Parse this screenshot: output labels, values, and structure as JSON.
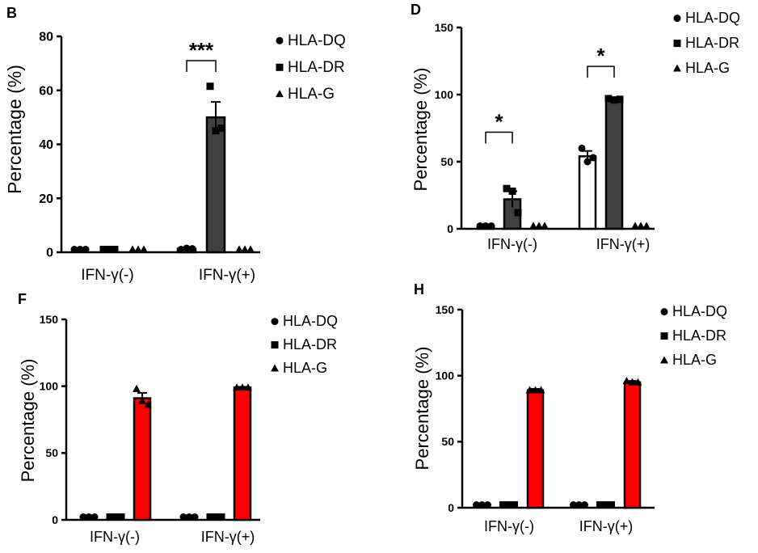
{
  "chart_data": [
    {
      "panel": "B",
      "type": "bar",
      "ylabel": "Percentage (%)",
      "ylim": [
        0,
        80
      ],
      "yticks": [
        "0",
        "20",
        "40",
        "60",
        "80"
      ],
      "categories": [
        "IFN-γ(-)",
        "IFN-γ(+)"
      ],
      "legend": [
        "HLA-DQ",
        "HLA-DR",
        "HLA-G"
      ],
      "series": [
        {
          "name": "HLA-DQ",
          "fill": "#ffffff",
          "marker": "circle",
          "values": [
            0.3,
            1.3
          ],
          "err": [
            0,
            0
          ],
          "points": [
            [
              0.3,
              0.3,
              0.3
            ],
            [
              1.0,
              1.5,
              1.3
            ]
          ]
        },
        {
          "name": "HLA-DR",
          "fill": "#404040",
          "marker": "square",
          "values": [
            0.3,
            50
          ],
          "err": [
            0,
            5.7
          ],
          "points": [
            [
              0.3,
              0.3,
              0.3
            ],
            [
              61.5,
              45,
              46
            ]
          ]
        },
        {
          "name": "HLA-G",
          "fill": "#ffffff",
          "marker": "triangle",
          "values": [
            0.3,
            0.3
          ],
          "err": [
            0,
            0
          ],
          "points": [
            [
              0.3,
              0.3,
              0.3
            ],
            [
              0.3,
              0.3,
              0.3
            ]
          ]
        }
      ],
      "significance": [
        {
          "from": [
            0,
            1
          ],
          "to": [
            1,
            1
          ],
          "label": "***",
          "y": 71
        }
      ]
    },
    {
      "panel": "D",
      "type": "bar",
      "ylabel": "Percentage (%)",
      "ylim": [
        0,
        150
      ],
      "yticks": [
        "0",
        "50",
        "100",
        "150"
      ],
      "categories": [
        "IFN-γ(-)",
        "IFN-γ(+)"
      ],
      "legend": [
        "HLA-DQ",
        "HLA-DR",
        "HLA-G"
      ],
      "series": [
        {
          "name": "HLA-DQ",
          "fill": "#ffffff",
          "marker": "circle",
          "values": [
            1.5,
            54
          ],
          "err": [
            0,
            4
          ],
          "points": [
            [
              1.5,
              1.5,
              1.5
            ],
            [
              60,
              50,
              53
            ]
          ]
        },
        {
          "name": "HLA-DR",
          "fill": "#404040",
          "marker": "square",
          "values": [
            22,
            96.5
          ],
          "err": [
            6,
            1
          ],
          "points": [
            [
              30,
              28,
              12
            ],
            [
              97,
              96,
              96.5
            ]
          ]
        },
        {
          "name": "HLA-G",
          "fill": "#ffffff",
          "marker": "triangle",
          "values": [
            0.3,
            0.3
          ],
          "err": [
            0,
            0
          ],
          "points": [
            [
              0.3,
              0.3,
              0.3
            ],
            [
              0.3,
              0.3,
              0.3
            ]
          ]
        }
      ],
      "significance": [
        {
          "from": [
            0,
            0
          ],
          "to": [
            1,
            0
          ],
          "label": "*",
          "y": 72
        },
        {
          "from": [
            0,
            1
          ],
          "to": [
            1,
            1
          ],
          "label": "*",
          "y": 121
        }
      ]
    },
    {
      "panel": "F",
      "type": "bar",
      "ylabel": "Percentage (%)",
      "ylim": [
        0,
        150
      ],
      "yticks": [
        "0",
        "50",
        "100",
        "150"
      ],
      "categories": [
        "IFN-γ(-)",
        "IFN-γ(+)"
      ],
      "legend": [
        "HLA-DQ",
        "HLA-DR",
        "HLA-G"
      ],
      "series": [
        {
          "name": "HLA-DQ",
          "fill": "#ffffff",
          "marker": "circle",
          "values": [
            0.3,
            0.3
          ],
          "err": [
            0,
            0
          ],
          "points": [
            [
              0.3,
              0.3,
              0.3
            ],
            [
              0.3,
              0.3,
              0.3
            ]
          ]
        },
        {
          "name": "HLA-DR",
          "fill": "#ffffff",
          "marker": "square",
          "values": [
            0.3,
            0.3
          ],
          "err": [
            0,
            0
          ],
          "points": [
            [
              0.3,
              0.3,
              0.3
            ],
            [
              0.3,
              0.3,
              0.3
            ]
          ]
        },
        {
          "name": "HLA-G",
          "fill": "#ff0000",
          "marker": "triangle",
          "values": [
            91,
            99
          ],
          "err": [
            4,
            0.5
          ],
          "points": [
            [
              98,
              89,
              86
            ],
            [
              99,
              99,
              99
            ]
          ]
        }
      ],
      "significance": []
    },
    {
      "panel": "H",
      "type": "bar",
      "ylabel": "Percentage (%)",
      "ylim": [
        0,
        150
      ],
      "yticks": [
        "0",
        "50",
        "100",
        "150"
      ],
      "categories": [
        "IFN-γ(-)",
        "IFN-γ(+)"
      ],
      "legend": [
        "HLA-DQ",
        "HLA-DR",
        "HLA-G"
      ],
      "series": [
        {
          "name": "HLA-DQ",
          "fill": "#ffffff",
          "marker": "circle",
          "values": [
            0.3,
            0.3
          ],
          "err": [
            0,
            0
          ],
          "points": [
            [
              0.3,
              0.3,
              0.3
            ],
            [
              0.3,
              0.3,
              0.3
            ]
          ]
        },
        {
          "name": "HLA-DR",
          "fill": "#ffffff",
          "marker": "square",
          "values": [
            0.3,
            0.3
          ],
          "err": [
            0,
            0
          ],
          "points": [
            [
              0.3,
              0.3,
              0.3
            ],
            [
              0.3,
              0.3,
              0.3
            ]
          ]
        },
        {
          "name": "HLA-G",
          "fill": "#ff0000",
          "marker": "triangle",
          "values": [
            89,
            95
          ],
          "err": [
            1,
            1
          ],
          "points": [
            [
              89,
              89,
              89
            ],
            [
              96,
              95,
              95
            ]
          ]
        }
      ],
      "significance": []
    }
  ]
}
